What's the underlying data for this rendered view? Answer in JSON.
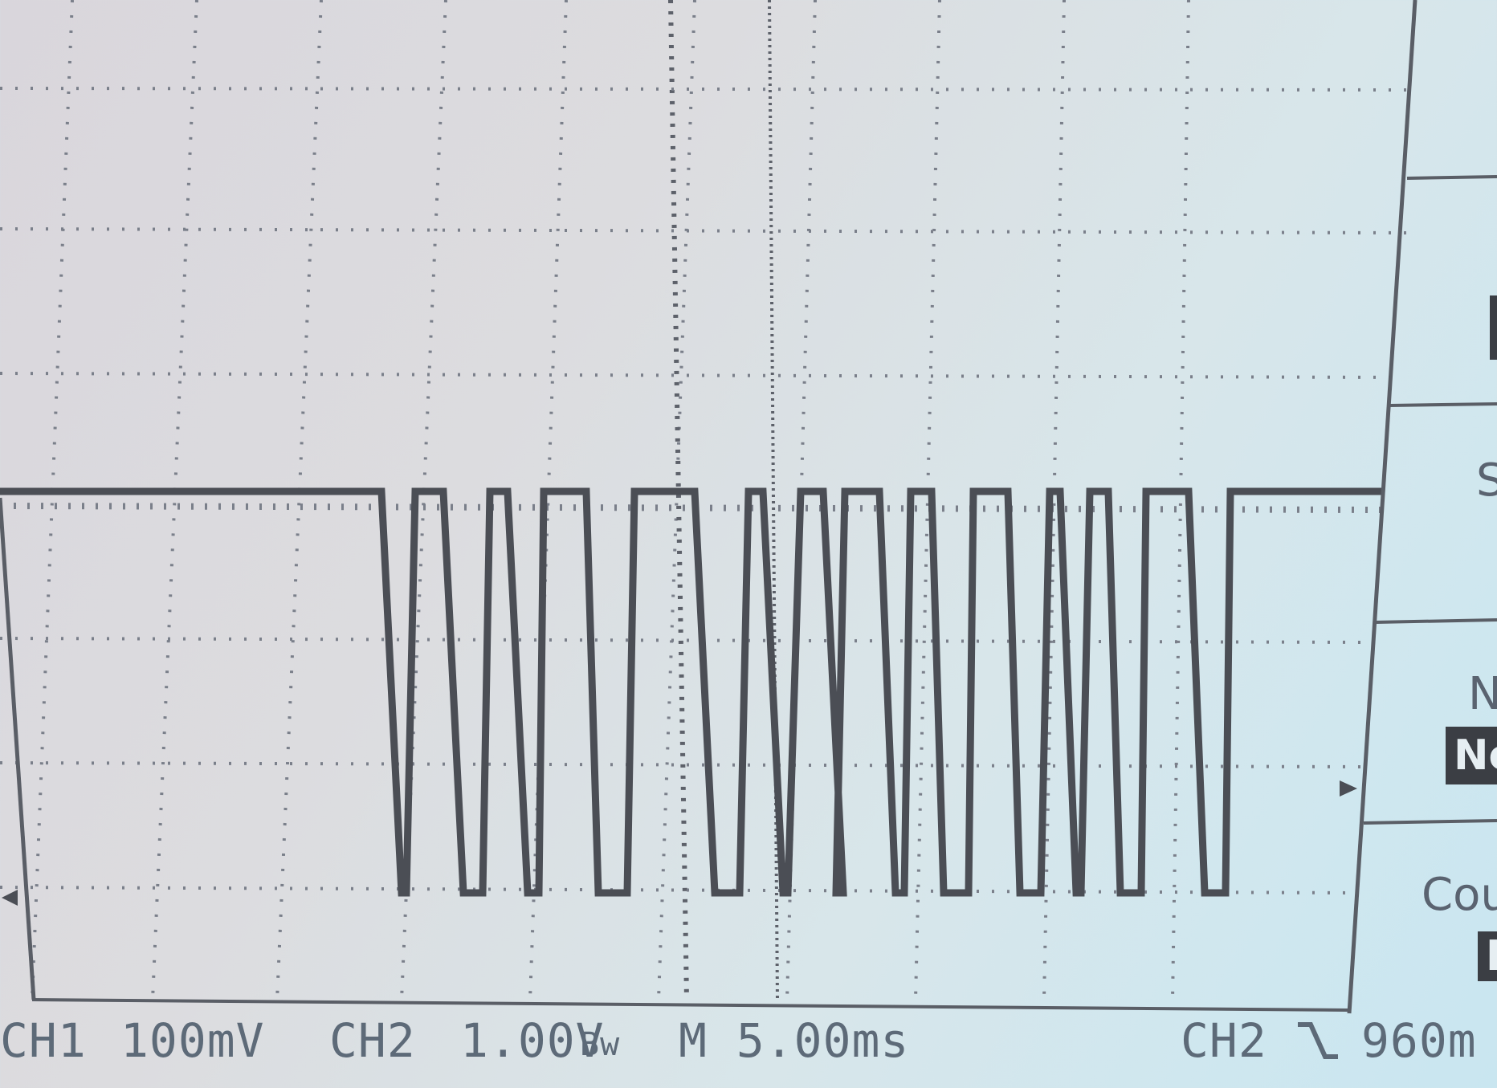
{
  "status": {
    "ch1": "CH1",
    "ch1_scale": "100mV",
    "ch2": "CH2",
    "ch2_scale": "1.00V",
    "bw": "Bw",
    "timebase": "M 5.00ms",
    "trigger_source": "CH2",
    "trigger_slope_icon": "falling-edge-icon",
    "trigger_level": "960m"
  },
  "side_menu": {
    "item_m_fragment": "N",
    "item_m_value": "No",
    "item_count_label": "Cou",
    "item_count_value": "D",
    "item_s_fragment": "S"
  },
  "colors": {
    "trace": "#4b4e55",
    "grid": "#7a7f8a",
    "text": "#5d6a78"
  },
  "waveform": {
    "channel": "CH2",
    "high_level": "idle-high",
    "pulses_count": 13
  }
}
